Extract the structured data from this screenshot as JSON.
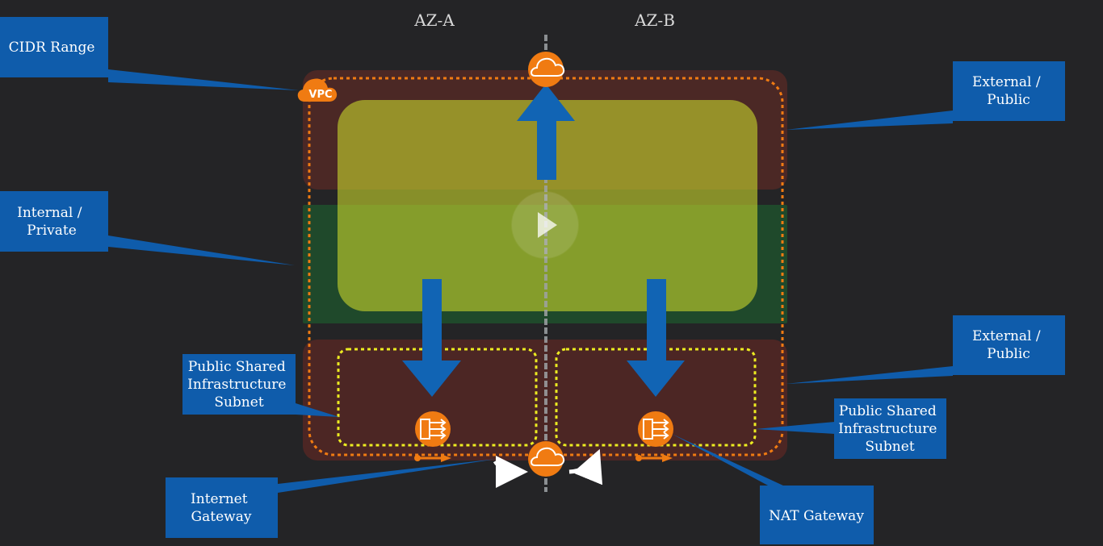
{
  "availability_zones": {
    "left": "AZ-A",
    "right": "AZ-B"
  },
  "vpc_badge": "VPC",
  "callouts": {
    "cidr_range": [
      "CIDR Range"
    ],
    "internal_private": [
      "Internal /",
      "Private"
    ],
    "external_public_top": [
      "External /",
      "Public"
    ],
    "external_public_bottom": [
      "External /",
      "Public"
    ],
    "public_subnet_left": [
      "Public Shared",
      "Infrastructure",
      "Subnet"
    ],
    "public_subnet_right": [
      "Public Shared",
      "Infrastructure",
      "Subnet"
    ],
    "internet_gateway": [
      "Internet",
      "Gateway"
    ],
    "nat_gateway": [
      "NAT Gateway"
    ]
  },
  "colors": {
    "background": "#242426",
    "callout_blue": "#0f5cab",
    "orange": "#f07b12",
    "yellow_dotted": "#ecec21",
    "arrow_blue": "#1164b4"
  }
}
